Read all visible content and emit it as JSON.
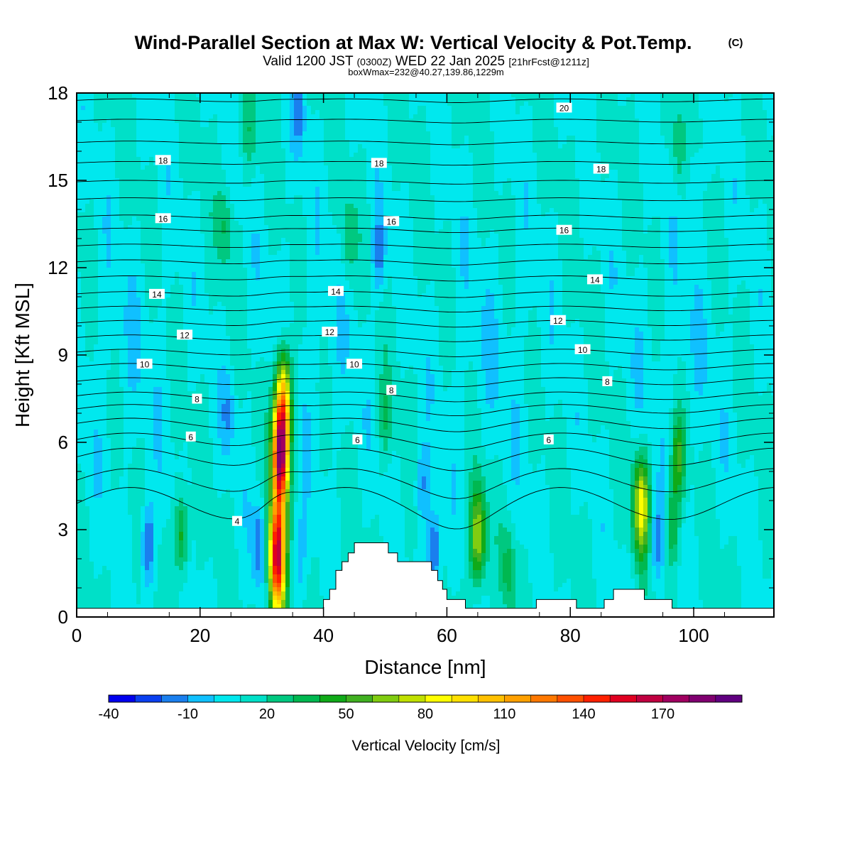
{
  "chart_data": {
    "type": "heatmap",
    "title": "Wind-Parallel Section at Max W: Vertical Velocity & Pot.Temp.",
    "title_mark": "(C)",
    "subtitle": {
      "valid": "Valid 1200 JST",
      "utc": "(0300Z)",
      "date": "WED 22 Jan 2025",
      "fcst": "[21hrFcst@1211z]"
    },
    "info": "boxWmax=232@40.27,139.86,1229m",
    "xlabel": "Distance [nm]",
    "ylabel": "Height [Kft MSL]",
    "xlim": [
      0,
      113
    ],
    "ylim": [
      0,
      18
    ],
    "x_ticks": [
      0,
      20,
      40,
      60,
      80,
      100
    ],
    "y_ticks": [
      0,
      3,
      6,
      9,
      12,
      15,
      18
    ],
    "background_w": 10,
    "updrafts": [
      {
        "x": 33,
        "z": 5.5,
        "w": 160
      },
      {
        "x": 33.5,
        "z": 7.5,
        "w": 95
      },
      {
        "x": 32.5,
        "z": 2.5,
        "w": 120
      },
      {
        "x": 32.5,
        "z": 1.0,
        "w": 70
      },
      {
        "x": 65,
        "z": 2.8,
        "w": 65
      },
      {
        "x": 91.5,
        "z": 3.8,
        "w": 75
      },
      {
        "x": 97.5,
        "z": 5.5,
        "w": 42
      },
      {
        "x": 96.5,
        "z": 3.2,
        "w": 35
      },
      {
        "x": 17,
        "z": 2.8,
        "w": 40
      },
      {
        "x": 70,
        "z": 1.6,
        "w": 25
      },
      {
        "x": 24,
        "z": 13.5,
        "w": 20
      },
      {
        "x": 44,
        "z": 13.0,
        "w": 20
      },
      {
        "x": 97.5,
        "z": 16.0,
        "w": 18
      },
      {
        "x": 28,
        "z": 16.5,
        "w": 16
      },
      {
        "x": 50,
        "z": 6.8,
        "w": 18
      }
    ],
    "downdrafts": [
      {
        "x": 11.5,
        "z": 2.5,
        "w": -35
      },
      {
        "x": 29.5,
        "z": 2.5,
        "w": -28
      },
      {
        "x": 58,
        "z": 2.3,
        "w": -38
      },
      {
        "x": 56,
        "z": 4.5,
        "w": -22
      },
      {
        "x": 24.5,
        "z": 7.0,
        "w": -18
      },
      {
        "x": 94,
        "z": 2.6,
        "w": -25
      },
      {
        "x": 36,
        "z": 2.0,
        "w": -18
      },
      {
        "x": 49,
        "z": 12.5,
        "w": -25
      },
      {
        "x": 36,
        "z": 17.3,
        "w": -22
      },
      {
        "x": 100,
        "z": 15.0,
        "w": -15
      }
    ],
    "terrain": [
      {
        "x": 0,
        "z": 0.3
      },
      {
        "x": 40,
        "z": 0.3
      },
      {
        "x": 40,
        "z": 0.6
      },
      {
        "x": 41,
        "z": 0.6
      },
      {
        "x": 41,
        "z": 0.95
      },
      {
        "x": 42,
        "z": 0.95
      },
      {
        "x": 42,
        "z": 1.6
      },
      {
        "x": 43,
        "z": 1.6
      },
      {
        "x": 43,
        "z": 1.9
      },
      {
        "x": 44,
        "z": 1.9
      },
      {
        "x": 44,
        "z": 2.2
      },
      {
        "x": 45,
        "z": 2.2
      },
      {
        "x": 45,
        "z": 2.55
      },
      {
        "x": 50.5,
        "z": 2.55
      },
      {
        "x": 50.5,
        "z": 2.2
      },
      {
        "x": 52,
        "z": 2.2
      },
      {
        "x": 52,
        "z": 1.9
      },
      {
        "x": 57.5,
        "z": 1.9
      },
      {
        "x": 57.5,
        "z": 1.6
      },
      {
        "x": 58.5,
        "z": 1.6
      },
      {
        "x": 58.5,
        "z": 1.25
      },
      {
        "x": 59.3,
        "z": 1.25
      },
      {
        "x": 59.3,
        "z": 0.95
      },
      {
        "x": 60,
        "z": 0.95
      },
      {
        "x": 60,
        "z": 0.6
      },
      {
        "x": 63,
        "z": 0.6
      },
      {
        "x": 63,
        "z": 0.3
      },
      {
        "x": 74.5,
        "z": 0.3
      },
      {
        "x": 74.5,
        "z": 0.6
      },
      {
        "x": 81,
        "z": 0.6
      },
      {
        "x": 81,
        "z": 0.3
      },
      {
        "x": 85.5,
        "z": 0.3
      },
      {
        "x": 85.5,
        "z": 0.6
      },
      {
        "x": 87,
        "z": 0.6
      },
      {
        "x": 87,
        "z": 0.95
      },
      {
        "x": 92,
        "z": 0.95
      },
      {
        "x": 92,
        "z": 0.6
      },
      {
        "x": 96.5,
        "z": 0.6
      },
      {
        "x": 96.5,
        "z": 0.3
      },
      {
        "x": 113,
        "z": 0.3
      }
    ],
    "theta_isolines": [
      {
        "z0": 3.9,
        "amp": 0.55,
        "label": "4",
        "lx": 26
      },
      {
        "z0": 4.7,
        "amp": 0.4,
        "label": "",
        "lx": 0
      },
      {
        "z0": 5.5,
        "amp": 0.3,
        "label": "",
        "lx": 0
      },
      {
        "z0": 6.1,
        "amp": 0.22,
        "label": "6",
        "lx": 18
      },
      {
        "z0": 6.65,
        "amp": 0.18,
        "label": "",
        "lx": 0
      },
      {
        "z0": 7.15,
        "amp": 0.15,
        "label": "",
        "lx": 0
      },
      {
        "z0": 7.6,
        "amp": 0.13,
        "label": "8",
        "lx": 19
      },
      {
        "z0": 8.1,
        "amp": 0.12,
        "label": "",
        "lx": 0
      },
      {
        "z0": 8.6,
        "amp": 0.11,
        "label": "10",
        "lx": 11
      },
      {
        "z0": 9.1,
        "amp": 0.1,
        "label": "",
        "lx": 0
      },
      {
        "z0": 9.6,
        "amp": 0.09,
        "label": "12",
        "lx": 17
      },
      {
        "z0": 10.1,
        "amp": 0.09,
        "label": "",
        "lx": 0
      },
      {
        "z0": 10.6,
        "amp": 0.08,
        "label": "",
        "lx": 0
      },
      {
        "z0": 11.1,
        "amp": 0.08,
        "label": "14",
        "lx": 13
      },
      {
        "z0": 11.65,
        "amp": 0.07,
        "label": "",
        "lx": 0
      },
      {
        "z0": 12.2,
        "amp": 0.07,
        "label": "",
        "lx": 0
      },
      {
        "z0": 12.75,
        "amp": 0.06,
        "label": "",
        "lx": 0
      },
      {
        "z0": 13.3,
        "amp": 0.06,
        "label": "",
        "lx": 0
      },
      {
        "z0": 13.75,
        "amp": 0.06,
        "label": "16",
        "lx": 14
      },
      {
        "z0": 14.35,
        "amp": 0.05,
        "label": "",
        "lx": 0
      },
      {
        "z0": 14.95,
        "amp": 0.05,
        "label": "",
        "lx": 0
      },
      {
        "z0": 15.6,
        "amp": 0.05,
        "label": "18",
        "lx": 14
      },
      {
        "z0": 16.3,
        "amp": 0.05,
        "label": "",
        "lx": 0
      },
      {
        "z0": 17.05,
        "amp": 0.05,
        "label": "",
        "lx": 0
      },
      {
        "z0": 17.75,
        "amp": 0.05,
        "label": "20",
        "lx": 79
      }
    ],
    "contour_labels": [
      {
        "text": "4",
        "x": 26,
        "z": 3.3
      },
      {
        "text": "6",
        "x": 18.5,
        "z": 6.2
      },
      {
        "text": "6",
        "x": 45.5,
        "z": 6.1
      },
      {
        "text": "6",
        "x": 76.5,
        "z": 6.1
      },
      {
        "text": "8",
        "x": 19.5,
        "z": 7.5
      },
      {
        "text": "8",
        "x": 51,
        "z": 7.8
      },
      {
        "text": "8",
        "x": 86,
        "z": 8.1
      },
      {
        "text": "10",
        "x": 11,
        "z": 8.7
      },
      {
        "text": "10",
        "x": 45,
        "z": 8.7
      },
      {
        "text": "10",
        "x": 82,
        "z": 9.2
      },
      {
        "text": "12",
        "x": 17.5,
        "z": 9.7
      },
      {
        "text": "12",
        "x": 41,
        "z": 9.8
      },
      {
        "text": "12",
        "x": 78,
        "z": 10.2
      },
      {
        "text": "14",
        "x": 13,
        "z": 11.1
      },
      {
        "text": "14",
        "x": 42,
        "z": 11.2
      },
      {
        "text": "14",
        "x": 84,
        "z": 11.6
      },
      {
        "text": "16",
        "x": 14,
        "z": 13.7
      },
      {
        "text": "16",
        "x": 51,
        "z": 13.6
      },
      {
        "text": "16",
        "x": 79,
        "z": 13.3
      },
      {
        "text": "18",
        "x": 14,
        "z": 15.7
      },
      {
        "text": "18",
        "x": 49,
        "z": 15.6
      },
      {
        "text": "18",
        "x": 85,
        "z": 15.4
      },
      {
        "text": "20",
        "x": 79,
        "z": 17.5
      }
    ],
    "colorbar": {
      "label": "Vertical Velocity [cm/s]",
      "tick_labels": [
        "-40",
        "-10",
        "20",
        "50",
        "80",
        "110",
        "140",
        "170"
      ],
      "levels": [
        -40,
        -30,
        -20,
        -10,
        0,
        10,
        20,
        30,
        40,
        50,
        60,
        70,
        80,
        90,
        100,
        110,
        120,
        130,
        140,
        150,
        160,
        170,
        180,
        190
      ],
      "colors": [
        "#0000ee",
        "#0a3ff0",
        "#1a7fee",
        "#10c0ff",
        "#00e8ee",
        "#00e0c8",
        "#00c880",
        "#00b850",
        "#10aa18",
        "#40b020",
        "#80cc10",
        "#c0e000",
        "#ffff00",
        "#ffe000",
        "#ffc000",
        "#ffa000",
        "#ff7800",
        "#ff5000",
        "#ff2000",
        "#e00020",
        "#c00040",
        "#a00060",
        "#800070",
        "#600080"
      ]
    }
  }
}
